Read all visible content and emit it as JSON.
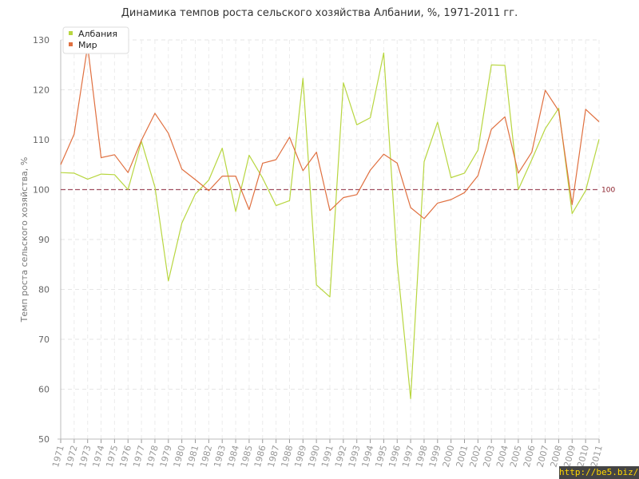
{
  "chart_data": {
    "type": "line",
    "title": "Динамика темпов роста сельского хозяйства Албании, %, 1971-2011 гг.",
    "ylabel": "Темп роста сельского хозяйства, %",
    "xlabel": "",
    "ylim": [
      50,
      130
    ],
    "yticks": [
      50,
      60,
      70,
      80,
      90,
      100,
      110,
      120,
      130
    ],
    "grid": true,
    "legend_position": "top-left",
    "reference_line": {
      "value": 100,
      "label": "100",
      "color": "#a05060"
    },
    "x": [
      "1971",
      "1972",
      "1973",
      "1974",
      "1975",
      "1976",
      "1977",
      "1978",
      "1979",
      "1980",
      "1981",
      "1982",
      "1983",
      "1984",
      "1985",
      "1986",
      "1987",
      "1988",
      "1989",
      "1990",
      "1991",
      "1992",
      "1993",
      "1994",
      "1995",
      "1996",
      "1997",
      "1998",
      "1999",
      "2000",
      "2001",
      "2002",
      "2003",
      "2004",
      "2005",
      "2006",
      "2007",
      "2008",
      "2009",
      "2010",
      "2011"
    ],
    "series": [
      {
        "name": "Албания",
        "color": "#b8d640",
        "values": [
          103.4,
          103.3,
          102.1,
          103.1,
          103.0,
          100.0,
          109.7,
          100.5,
          81.7,
          93.3,
          99.1,
          101.9,
          108.3,
          95.6,
          106.9,
          102.3,
          96.8,
          97.8,
          122.3,
          80.9,
          78.5,
          121.4,
          113.0,
          114.4,
          127.4,
          85.2,
          58.1,
          105.6,
          113.5,
          102.4,
          103.3,
          107.9,
          125.0,
          124.9,
          100.0,
          106.0,
          112.2,
          116.3,
          95.2,
          99.8,
          110.1
        ]
      },
      {
        "name": "Мир",
        "color": "#e07040",
        "values": [
          105.0,
          111.1,
          128.8,
          106.4,
          107.0,
          103.4,
          109.9,
          115.3,
          111.3,
          104.1,
          102.0,
          99.8,
          102.7,
          102.7,
          96.0,
          105.3,
          106.0,
          110.5,
          103.8,
          107.5,
          95.8,
          98.4,
          99.0,
          103.9,
          107.1,
          105.3,
          96.4,
          94.2,
          97.3,
          98.0,
          99.4,
          102.8,
          112.1,
          114.6,
          103.3,
          107.5,
          119.9,
          115.8,
          97.0,
          116.1,
          113.6
        ]
      }
    ]
  },
  "watermark": "http://be5.biz/"
}
